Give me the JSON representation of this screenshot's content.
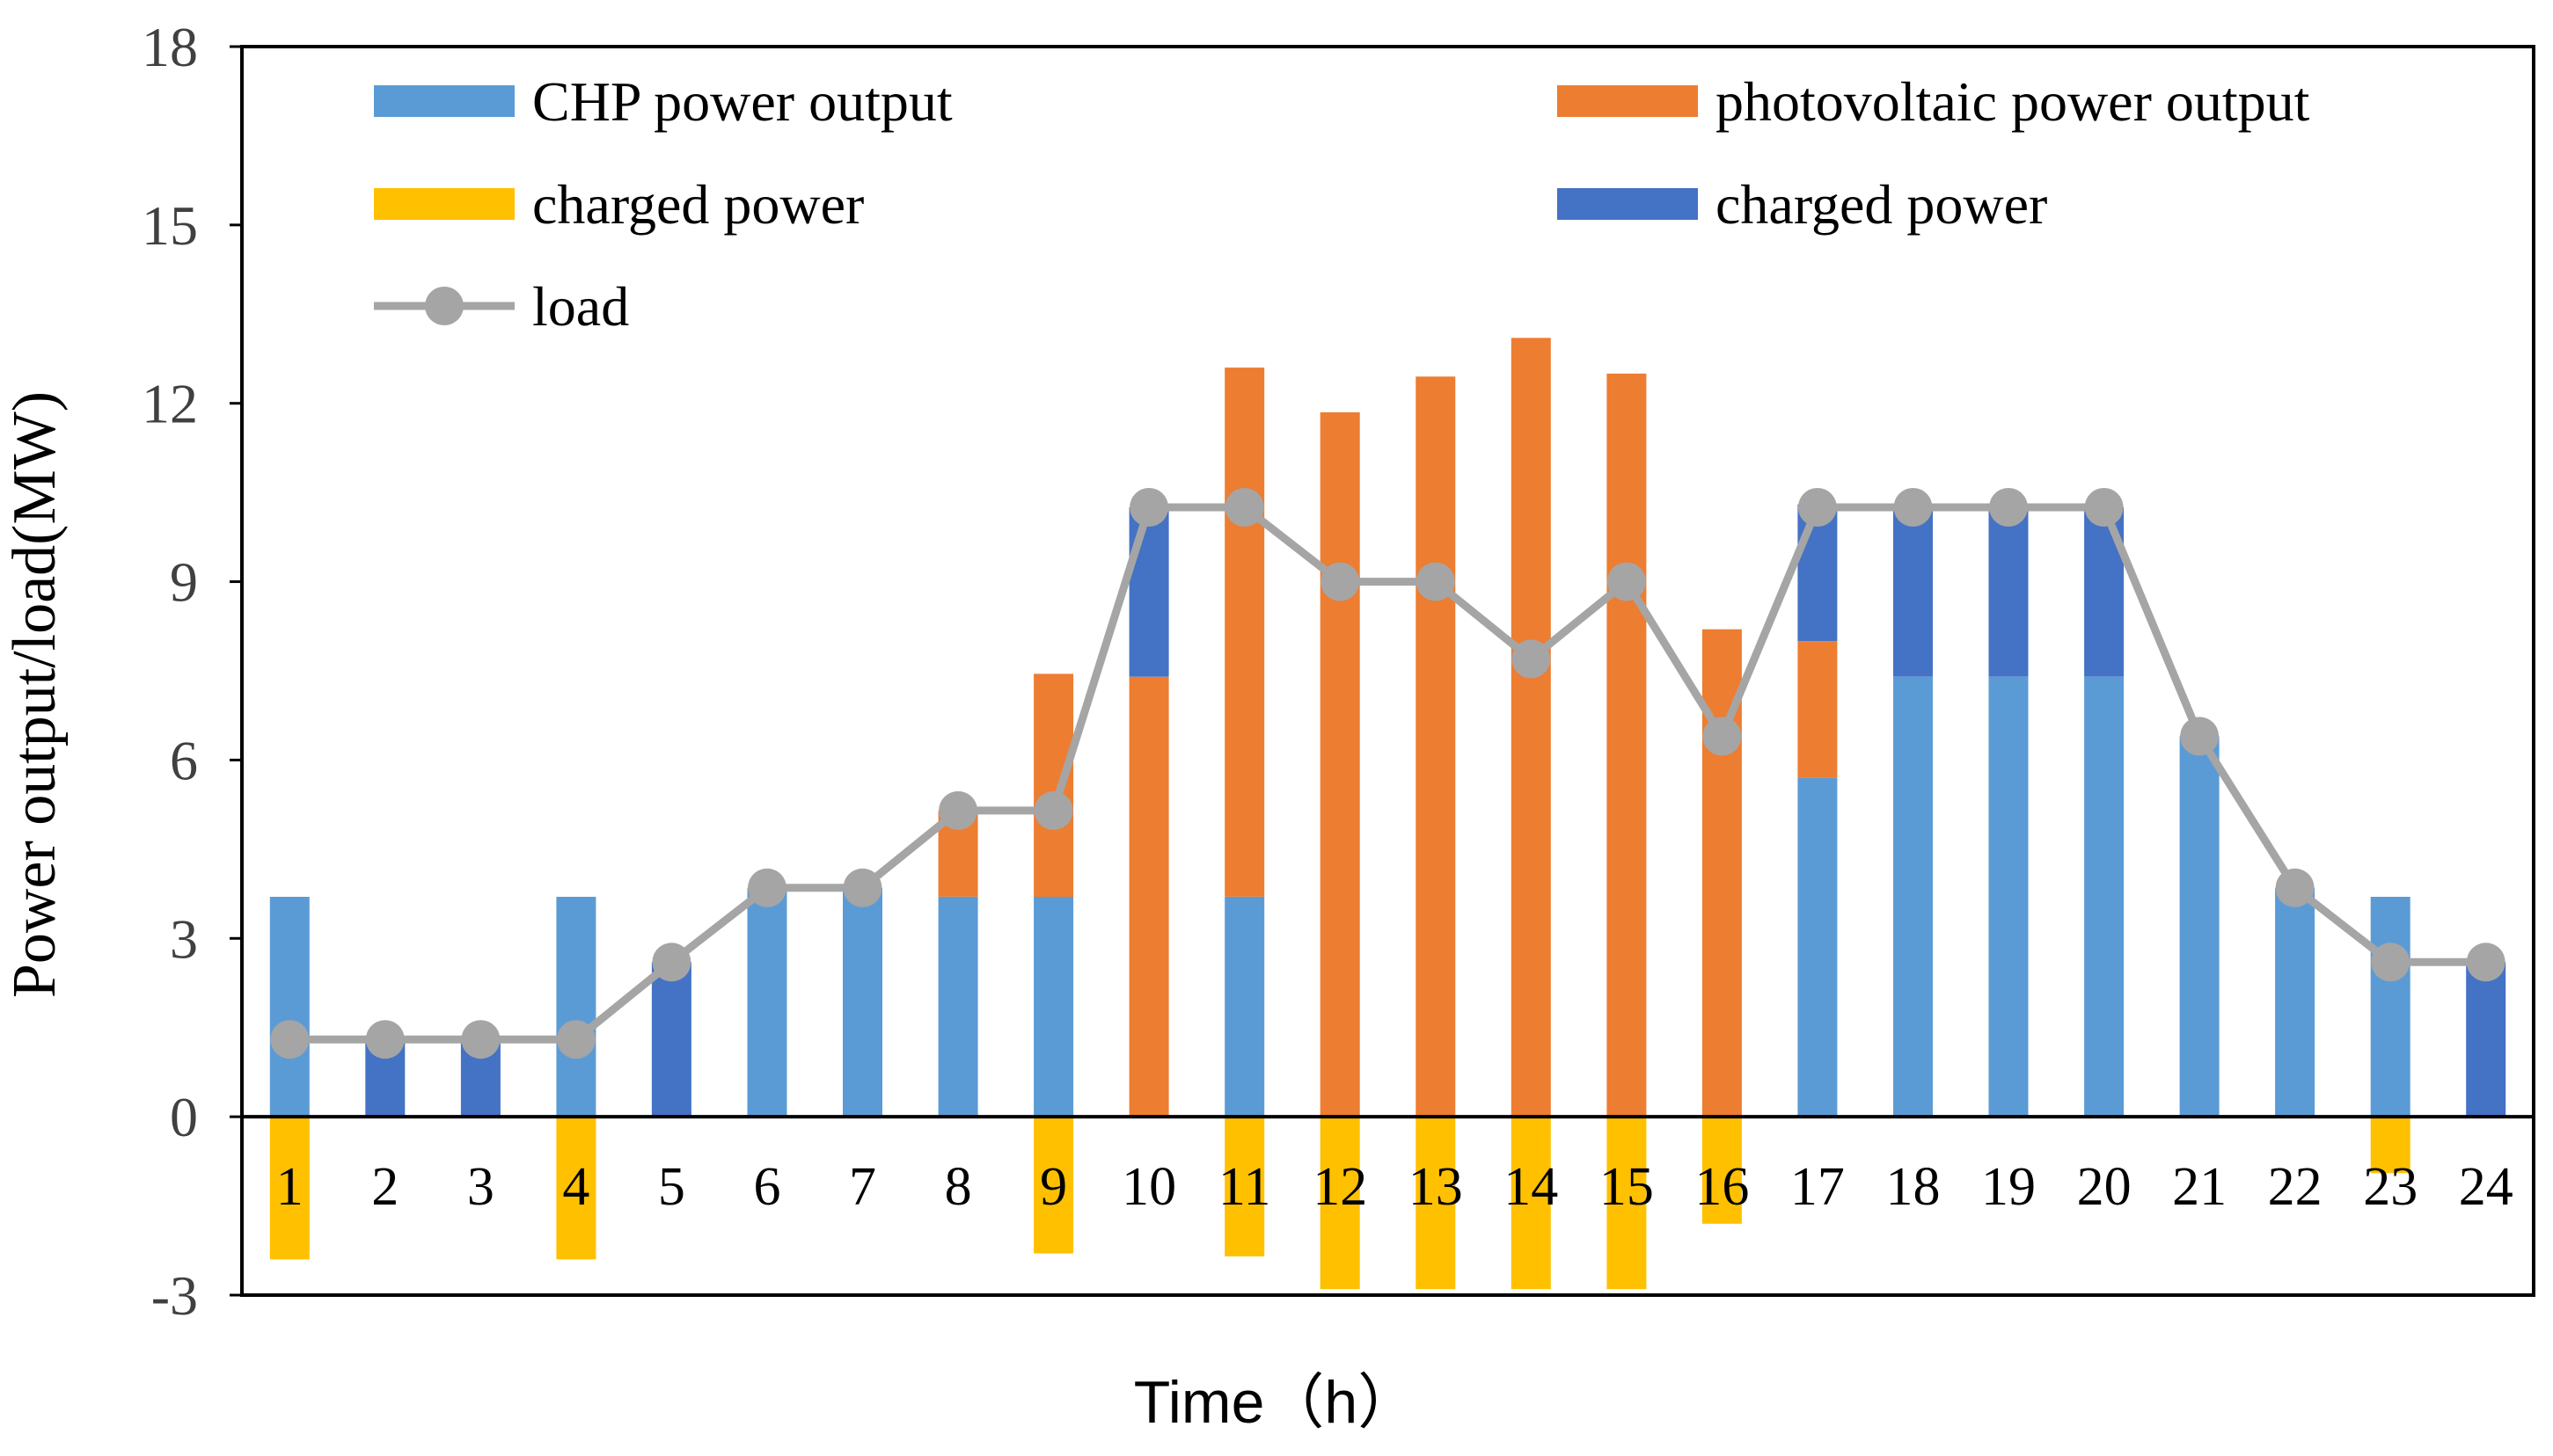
{
  "chart_data": {
    "type": "bar",
    "subtype": "stacked bar with line",
    "title": "",
    "xlabel": "Time（h）",
    "ylabel": "Power output/load(MW)",
    "ylim": [
      -3,
      18
    ],
    "yticks": [
      -3,
      0,
      3,
      6,
      9,
      12,
      15,
      18
    ],
    "ytick_labels": [
      "-3",
      "0",
      "3",
      "6",
      "9",
      "12",
      "15",
      "18"
    ],
    "categories": [
      "1",
      "2",
      "3",
      "4",
      "5",
      "6",
      "7",
      "8",
      "9",
      "10",
      "11",
      "12",
      "13",
      "14",
      "15",
      "16",
      "17",
      "18",
      "19",
      "20",
      "21",
      "22",
      "23",
      "24"
    ],
    "grid": false,
    "legend": {
      "placement": "top-inside",
      "entries": [
        {
          "name": "CHP power output",
          "color": "#5b9bd5",
          "kind": "bar"
        },
        {
          "name": "photovoltaic power output",
          "color": "#ed7d31",
          "kind": "bar"
        },
        {
          "name": "charged power",
          "color": "#ffc000",
          "kind": "bar"
        },
        {
          "name": "charged power",
          "color": "#4472c4",
          "kind": "bar"
        },
        {
          "name": "load",
          "color": "#a5a5a5",
          "kind": "line"
        }
      ]
    },
    "series": [
      {
        "name": "CHP power output",
        "color": "#5b9bd5",
        "values": [
          3.7,
          0,
          0,
          3.7,
          0,
          3.85,
          3.85,
          3.7,
          3.7,
          0,
          3.7,
          0,
          0,
          0,
          0,
          0,
          5.7,
          7.4,
          7.4,
          7.4,
          6.4,
          3.85,
          3.7,
          0
        ]
      },
      {
        "name": "photovoltaic power output",
        "color": "#ed7d31",
        "values": [
          0,
          0,
          0,
          0,
          0,
          0,
          0,
          1.45,
          3.75,
          7.4,
          8.9,
          11.85,
          12.45,
          13.1,
          12.5,
          8.2,
          2.3,
          0,
          0,
          0,
          0,
          0,
          0,
          0
        ]
      },
      {
        "name": "charged power",
        "color": "#ffc000",
        "values": [
          -2.4,
          0,
          0,
          -2.4,
          0,
          0,
          0,
          0,
          -2.3,
          0,
          -2.35,
          -2.9,
          -2.9,
          -2.9,
          -2.9,
          -1.8,
          0,
          0,
          0,
          0,
          0,
          0,
          -0.95,
          0
        ]
      },
      {
        "name": "charged power",
        "color": "#4472c4",
        "values": [
          0,
          1.3,
          1.3,
          0,
          2.6,
          0,
          0,
          0,
          0,
          2.85,
          0,
          0,
          0,
          0,
          0,
          0,
          2.3,
          2.85,
          2.85,
          2.85,
          0,
          0,
          0,
          2.6
        ]
      },
      {
        "name": "load",
        "color": "#a5a5a5",
        "type": "line",
        "values": [
          1.3,
          1.3,
          1.3,
          1.3,
          2.6,
          3.85,
          3.85,
          5.15,
          5.15,
          10.25,
          10.25,
          9.0,
          9.0,
          7.7,
          9.0,
          6.4,
          10.25,
          10.25,
          10.25,
          10.25,
          6.4,
          3.85,
          2.6,
          2.6
        ]
      }
    ]
  }
}
